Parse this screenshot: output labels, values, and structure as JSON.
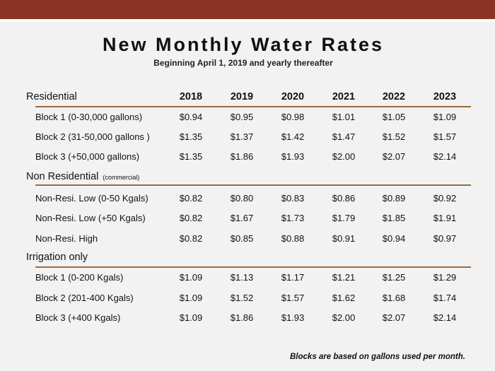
{
  "title": "New Monthly Water Rates",
  "subtitle": "Beginning April 1, 2019 and yearly thereafter",
  "years": [
    "2018",
    "2019",
    "2020",
    "2021",
    "2022",
    "2023"
  ],
  "sections": [
    {
      "name": "Residential",
      "note": "",
      "rows": [
        {
          "label": "Block 1 (0-30,000 gallons)",
          "values": [
            "$0.94",
            "$0.95",
            "$0.98",
            "$1.01",
            "$1.05",
            "$1.09"
          ]
        },
        {
          "label": "Block 2 (31-50,000 gallons )",
          "values": [
            "$1.35",
            "$1.37",
            "$1.42",
            "$1.47",
            "$1.52",
            "$1.57"
          ]
        },
        {
          "label": "Block 3 (+50,000 gallons)",
          "values": [
            "$1.35",
            "$1.86",
            "$1.93",
            "$2.00",
            "$2.07",
            "$2.14"
          ]
        }
      ]
    },
    {
      "name": "Non Residential",
      "note": "(commercial)",
      "rows": [
        {
          "label": "Non-Resi. Low (0-50 Kgals)",
          "values": [
            "$0.82",
            "$0.80",
            "$0.83",
            "$0.86",
            "$0.89",
            "$0.92"
          ]
        },
        {
          "label": "Non-Resi. Low (+50 Kgals)",
          "values": [
            "$0.82",
            "$1.67",
            "$1.73",
            "$1.79",
            "$1.85",
            "$1.91"
          ]
        },
        {
          "label": "Non-Resi. High",
          "values": [
            "$0.82",
            "$0.85",
            "$0.88",
            "$0.91",
            "$0.94",
            "$0.97"
          ]
        }
      ]
    },
    {
      "name": "Irrigation only",
      "note": "",
      "rows": [
        {
          "label": "Block 1 (0-200 Kgals)",
          "values": [
            "$1.09",
            "$1.13",
            "$1.17",
            "$1.21",
            "$1.25",
            "$1.29"
          ]
        },
        {
          "label": "Block 2 (201-400 Kgals)",
          "values": [
            "$1.09",
            "$1.52",
            "$1.57",
            "$1.62",
            "$1.68",
            "$1.74"
          ]
        },
        {
          "label": "Block 3 (+400 Kgals)",
          "values": [
            "$1.09",
            "$1.86",
            "$1.93",
            "$2.00",
            "$2.07",
            "$2.14"
          ]
        }
      ]
    }
  ],
  "footnote": "Blocks are based on gallons used per month."
}
